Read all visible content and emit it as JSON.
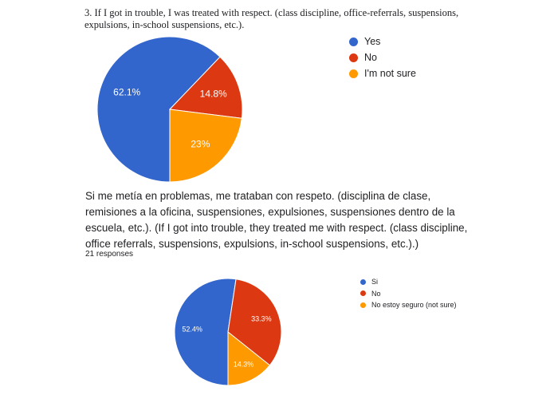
{
  "charts": [
    {
      "question": "3. If I got in trouble, I was treated with respect. (class discipline, office-referrals, suspensions, expulsions, in-school suspensions, etc.)."
    },
    {
      "question": "Si me metía en problemas, me trataban con respeto. (disciplina de clase, remisiones a la oficina, suspensiones, expulsiones, suspensiones dentro de la escuela, etc.). (If I got into trouble, they treated me with respect. (class discipline, office referrals, suspensions, expulsions, in-school suspensions, etc.).)",
      "responses_label": "21 responses"
    }
  ],
  "chart_data": [
    {
      "type": "pie",
      "title": "3. If I got in trouble, I was treated with respect. (class discipline, office-referrals, suspensions, expulsions, in-school suspensions, etc.).",
      "categories": [
        "Yes",
        "No",
        "I'm not sure"
      ],
      "values": [
        62.1,
        14.8,
        23
      ],
      "labels": [
        "62.1%",
        "14.8%",
        "23%"
      ],
      "colors": [
        "#3366cc",
        "#dc3912",
        "#ff9900"
      ],
      "legend_position": "right"
    },
    {
      "type": "pie",
      "title": "Si me metía en problemas, me trataban con respeto. (disciplina de clase, remisiones a la oficina, suspensiones, expulsiones, suspensiones dentro de la escuela, etc.). (If I got into trouble, they treated me with respect. (class discipline, office referrals, suspensions, expulsions, in-school suspensions, etc.).)",
      "categories": [
        "Si",
        "No",
        "No estoy seguro (not sure)"
      ],
      "values": [
        52.4,
        33.3,
        14.3
      ],
      "labels": [
        "52.4%",
        "33.3%",
        "14.3%"
      ],
      "colors": [
        "#3366cc",
        "#dc3912",
        "#ff9900"
      ],
      "legend_position": "right"
    }
  ]
}
